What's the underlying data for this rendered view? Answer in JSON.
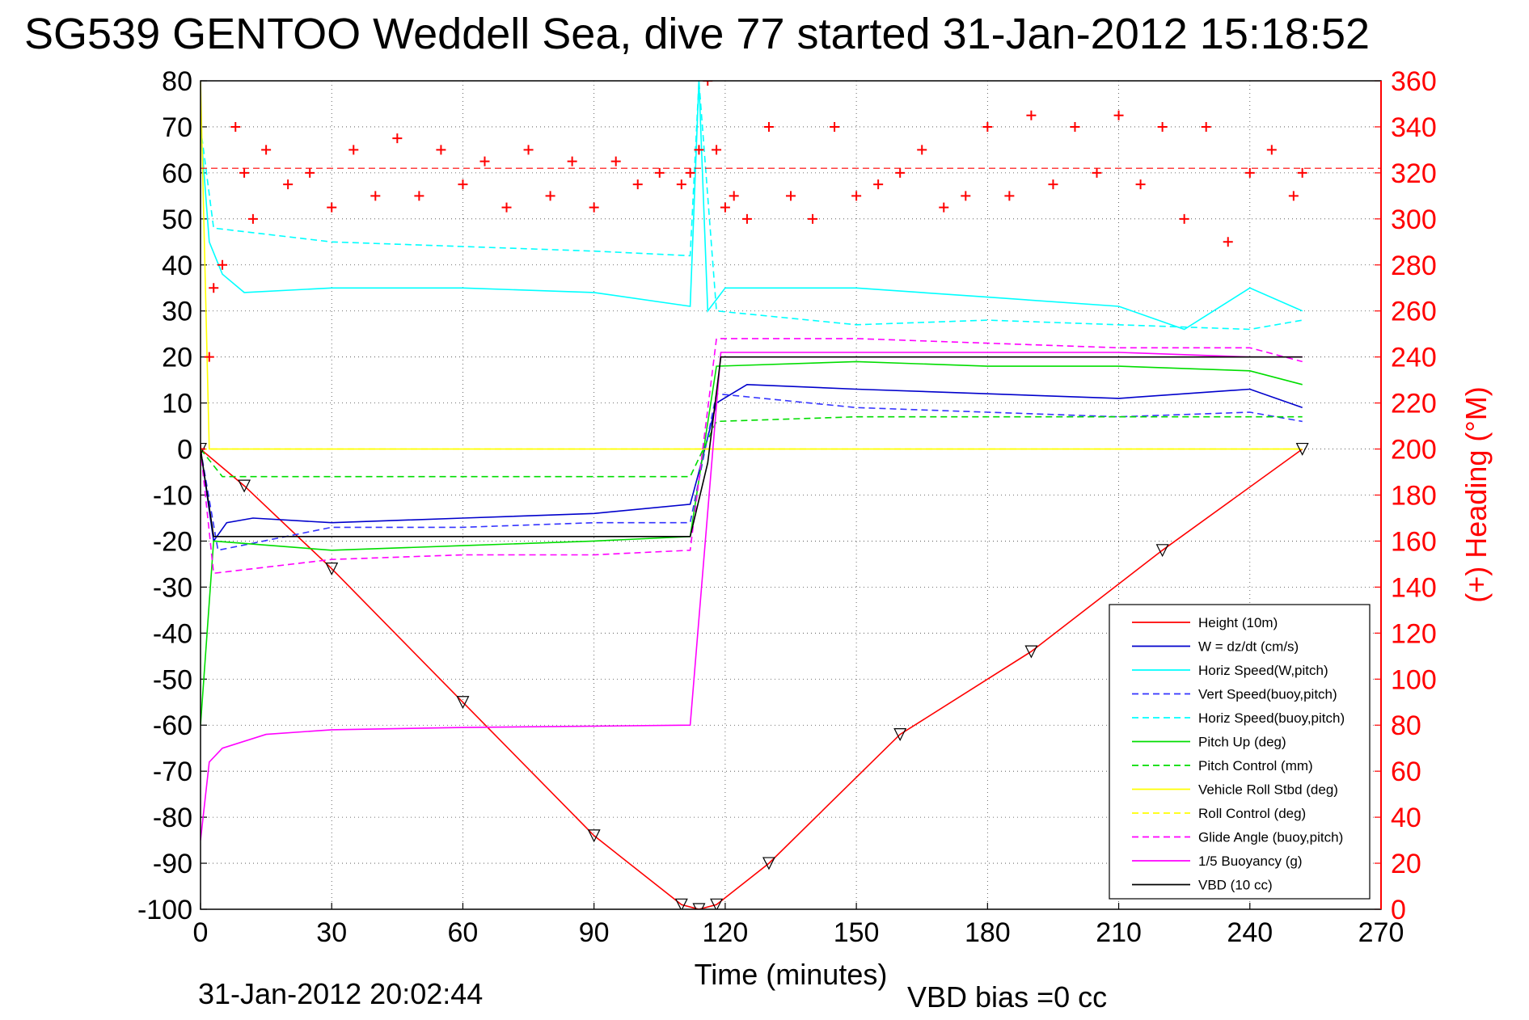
{
  "chart_data": {
    "type": "line",
    "title": "SG539 GENTOO Weddell Sea, dive 77 started 31-Jan-2012 15:18:52",
    "xlabel": "Time (minutes)",
    "ylabel": "",
    "y2label": "(+) Heading (°M)",
    "xlim": [
      0,
      270
    ],
    "ylim": [
      -100,
      80
    ],
    "y2lim": [
      0,
      360
    ],
    "xticks": [
      "0",
      "30",
      "60",
      "90",
      "120",
      "150",
      "180",
      "210",
      "240",
      "270"
    ],
    "yticks": [
      "80",
      "70",
      "60",
      "50",
      "40",
      "30",
      "20",
      "10",
      "0",
      "-10",
      "-20",
      "-30",
      "-40",
      "-50",
      "-60",
      "-70",
      "-80",
      "-90",
      "-100"
    ],
    "y2ticks": [
      "360",
      "340",
      "320",
      "300",
      "280",
      "260",
      "240",
      "220",
      "200",
      "180",
      "160",
      "140",
      "120",
      "100",
      "80",
      "60",
      "40",
      "20",
      "0"
    ],
    "grid": true,
    "legend_position": "lower-right",
    "colors": {
      "red": "#ff0000",
      "blue": "#0000cc",
      "cyan": "#00ffff",
      "green": "#00dd00",
      "yellow": "#ffff00",
      "magenta": "#ff00ff",
      "black": "#000000"
    },
    "series": [
      {
        "name": "Height (10m)",
        "color": "#ff0000",
        "style": "solid",
        "x": [
          0,
          10,
          30,
          60,
          90,
          110,
          114,
          118,
          130,
          160,
          190,
          220,
          252
        ],
        "y": [
          0,
          -8,
          -26,
          -55,
          -84,
          -99,
          -100,
          -99,
          -90,
          -62,
          -44,
          -22,
          0
        ]
      },
      {
        "name": "W = dz/dt (cm/s)",
        "color": "#0000cc",
        "style": "solid",
        "x": [
          0,
          3,
          6,
          12,
          30,
          60,
          90,
          112,
          114,
          118,
          125,
          150,
          180,
          210,
          240,
          252
        ],
        "y": [
          0,
          -20,
          -16,
          -15,
          -16,
          -15,
          -14,
          -12,
          -5,
          10,
          14,
          13,
          12,
          11,
          13,
          9
        ]
      },
      {
        "name": "Horiz Speed(W,pitch)",
        "color": "#00ffff",
        "style": "solid",
        "x": [
          0,
          2,
          5,
          10,
          30,
          60,
          90,
          112,
          114,
          116,
          120,
          150,
          180,
          210,
          225,
          240,
          252
        ],
        "y": [
          70,
          45,
          38,
          34,
          35,
          35,
          34,
          31,
          80,
          30,
          35,
          35,
          33,
          31,
          26,
          35,
          30
        ]
      },
      {
        "name": "Vert Speed(buoy,pitch)",
        "color": "#3333ff",
        "style": "dashed",
        "x": [
          0,
          4,
          30,
          60,
          90,
          112,
          118,
          150,
          180,
          210,
          240,
          252
        ],
        "y": [
          0,
          -22,
          -17,
          -17,
          -16,
          -16,
          12,
          9,
          8,
          7,
          8,
          6
        ]
      },
      {
        "name": "Horiz Speed(buoy,pitch)",
        "color": "#00ffff",
        "style": "dashed",
        "x": [
          0,
          3,
          30,
          60,
          90,
          112,
          114,
          118,
          150,
          180,
          210,
          240,
          252
        ],
        "y": [
          70,
          48,
          45,
          44,
          43,
          42,
          80,
          30,
          27,
          28,
          27,
          26,
          28
        ]
      },
      {
        "name": "Pitch Up (deg)",
        "color": "#00dd00",
        "style": "solid",
        "x": [
          0,
          3,
          30,
          60,
          90,
          112,
          118,
          150,
          180,
          210,
          240,
          252
        ],
        "y": [
          -60,
          -20,
          -22,
          -21,
          -20,
          -19,
          18,
          19,
          18,
          18,
          17,
          14
        ]
      },
      {
        "name": "Pitch Control (mm)",
        "color": "#00dd00",
        "style": "dashed",
        "x": [
          0,
          5,
          30,
          60,
          90,
          112,
          118,
          150,
          180,
          210,
          240,
          252
        ],
        "y": [
          0,
          -6,
          -6,
          -6,
          -6,
          -6,
          6,
          7,
          7,
          7,
          7,
          7
        ]
      },
      {
        "name": "Vehicle Roll Stbd (deg)",
        "color": "#ffff00",
        "style": "solid",
        "x": [
          0,
          2,
          5,
          30,
          60,
          90,
          112,
          118,
          150,
          180,
          210,
          240,
          252
        ],
        "y": [
          80,
          0,
          0,
          0,
          0,
          0,
          0,
          0,
          0,
          0,
          0,
          0,
          0
        ]
      },
      {
        "name": "Roll Control (deg)",
        "color": "#ffff00",
        "style": "dashed",
        "x": [
          0,
          30,
          60,
          90,
          112,
          118,
          150,
          180,
          210,
          240,
          252
        ],
        "y": [
          0,
          0,
          0,
          0,
          0,
          0,
          0,
          0,
          0,
          0,
          0
        ]
      },
      {
        "name": "Glide Angle (buoy,pitch)",
        "color": "#ff00ff",
        "style": "dashed",
        "x": [
          0,
          3,
          30,
          60,
          90,
          112,
          118,
          150,
          180,
          210,
          240,
          252
        ],
        "y": [
          0,
          -27,
          -24,
          -23,
          -23,
          -22,
          24,
          24,
          23,
          22,
          22,
          19
        ]
      },
      {
        "name": "1/5 Buoyancy (g)",
        "color": "#ff00ff",
        "style": "solid",
        "x": [
          0,
          2,
          5,
          15,
          30,
          60,
          90,
          112,
          119,
          130,
          150,
          180,
          210,
          240,
          252
        ],
        "y": [
          -85,
          -68,
          -65,
          -62,
          -61,
          -60.5,
          -60.2,
          -60,
          21,
          21,
          21,
          21,
          21,
          20,
          20
        ]
      },
      {
        "name": "VBD (10 cc)",
        "color": "#000000",
        "style": "solid",
        "x": [
          0,
          3,
          20,
          60,
          90,
          112,
          116,
          119,
          150,
          180,
          210,
          240,
          252
        ],
        "y": [
          0,
          -19,
          -19,
          -19,
          -19,
          -19,
          -3,
          20,
          20,
          20,
          20,
          20,
          20
        ]
      }
    ],
    "heading": {
      "axis": "right",
      "marker": "+",
      "color": "#ff0000",
      "reference_value": 322,
      "x": [
        0,
        2,
        3,
        5,
        8,
        10,
        12,
        15,
        20,
        25,
        30,
        35,
        40,
        45,
        50,
        55,
        60,
        65,
        70,
        75,
        80,
        85,
        90,
        95,
        100,
        105,
        110,
        112,
        114,
        116,
        118,
        120,
        122,
        125,
        130,
        135,
        140,
        145,
        150,
        155,
        160,
        165,
        170,
        175,
        180,
        185,
        190,
        195,
        200,
        205,
        210,
        215,
        220,
        225,
        230,
        235,
        240,
        245,
        250,
        252
      ],
      "y": [
        200,
        240,
        270,
        280,
        340,
        320,
        300,
        330,
        315,
        320,
        305,
        330,
        310,
        335,
        310,
        330,
        315,
        325,
        305,
        330,
        310,
        325,
        305,
        325,
        315,
        320,
        315,
        320,
        330,
        360,
        330,
        305,
        310,
        300,
        340,
        310,
        300,
        340,
        310,
        315,
        320,
        330,
        305,
        310,
        340,
        310,
        345,
        315,
        340,
        320,
        345,
        315,
        340,
        300,
        340,
        290,
        320,
        330,
        310,
        320
      ]
    },
    "vbd_bias_text": "VBD bias =0 cc",
    "timestamp": "31-Jan-2012 20:02:44"
  }
}
